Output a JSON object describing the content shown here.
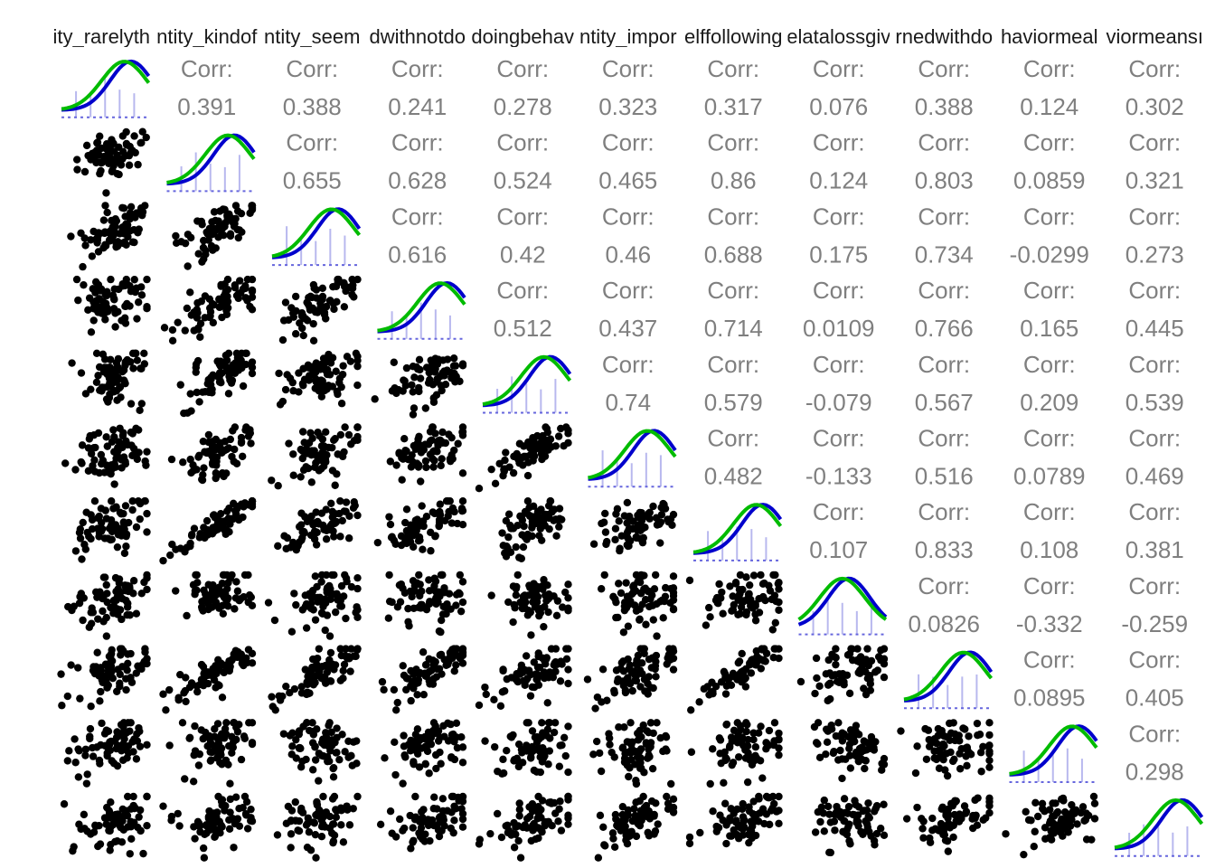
{
  "chart_data": {
    "type": "pairs",
    "column_labels": [
      "ity_rarelyth",
      "ntity_kindof",
      "ntity_seem",
      "dwithnotdo",
      "doingbehav",
      "ntity_impor",
      "elffollowing",
      "elatalossgiv",
      "rnedwithdo",
      "haviormeal",
      "viormeansı"
    ],
    "corr_label": "Corr:",
    "correlations": [
      [
        0.391,
        0.388,
        0.241,
        0.278,
        0.323,
        0.317,
        0.076,
        0.388,
        0.124,
        0.302
      ],
      [
        0.655,
        0.628,
        0.524,
        0.465,
        0.86,
        0.124,
        0.803,
        0.0859,
        0.321
      ],
      [
        0.616,
        0.42,
        0.46,
        0.688,
        0.175,
        0.734,
        -0.0299,
        0.273
      ],
      [
        0.512,
        0.437,
        0.714,
        0.0109,
        0.766,
        0.165,
        0.445
      ],
      [
        0.74,
        0.579,
        -0.079,
        0.567,
        0.209,
        0.539
      ],
      [
        0.482,
        -0.133,
        0.516,
        0.0789,
        0.469
      ],
      [
        0.107,
        0.833,
        0.108,
        0.381
      ],
      [
        0.0826,
        -0.332,
        -0.259
      ],
      [
        0.0895,
        0.405
      ],
      [
        0.298
      ]
    ]
  }
}
